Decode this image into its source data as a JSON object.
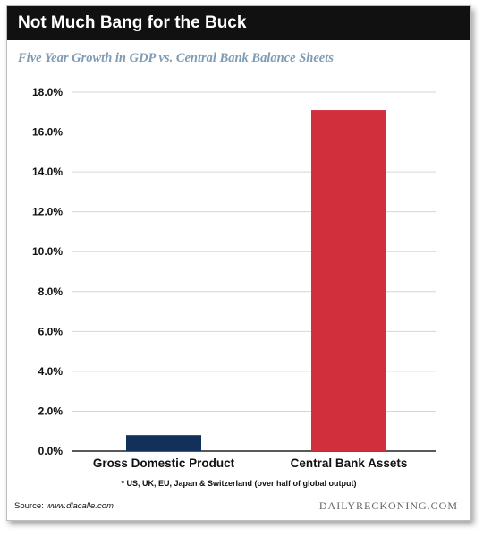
{
  "title": "Not Much Bang for the Buck",
  "subtitle": "Five Year Growth in GDP vs. Central Bank Balance Sheets",
  "footnote": "* US, UK, EU, Japan & Switzerland (over half of global output)",
  "source_label": "Source:",
  "source_url": "www.dlacalle.com",
  "brand": "DAILYRECKONING.COM",
  "chart_data": {
    "type": "bar",
    "title": "Not Much Bang for the Buck",
    "subtitle": "Five Year Growth in GDP vs. Central Bank Balance Sheets",
    "categories": [
      "Gross Domestic Product",
      "Central Bank Assets"
    ],
    "values": [
      0.8,
      17.1
    ],
    "colors": [
      "#12315a",
      "#d12f3c"
    ],
    "ylim": [
      0,
      18
    ],
    "yticks": [
      0,
      2,
      4,
      6,
      8,
      10,
      12,
      14,
      16,
      18
    ],
    "ytick_labels": [
      "0.0%",
      "2.0%",
      "4.0%",
      "6.0%",
      "8.0%",
      "10.0%",
      "12.0%",
      "14.0%",
      "16.0%",
      "18.0%"
    ],
    "grid": true,
    "legend": "none"
  }
}
